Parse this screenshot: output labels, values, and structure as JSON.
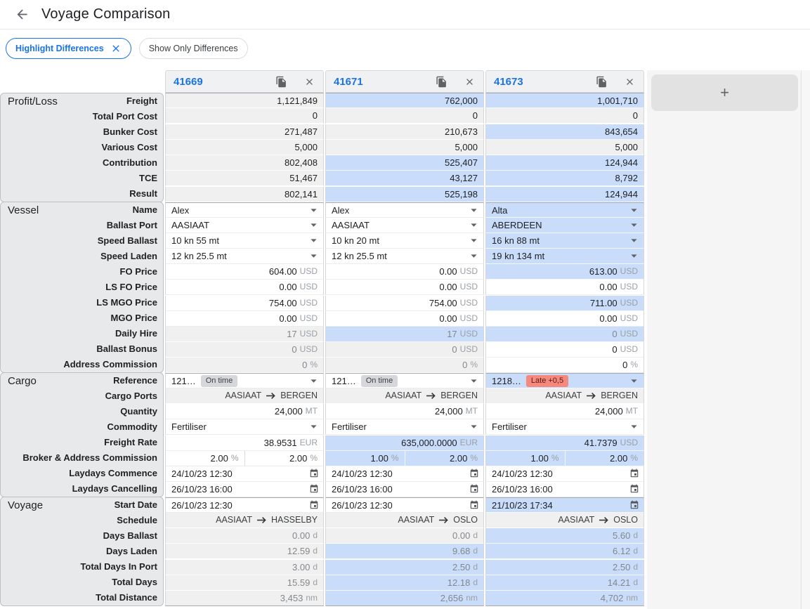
{
  "header": {
    "title": "Voyage Comparison",
    "back_icon": "arrow-left"
  },
  "filters": {
    "highlight_label": "Highlight Differences",
    "highlight_remove_icon": "close",
    "show_only_label": "Show Only Differences"
  },
  "add_column_label": "+",
  "colors": {
    "accent_blue": "#1a73e8",
    "diff_highlight_cell": "#c9dcfa",
    "readonly_cell": "#f0f0f0",
    "label_panel": "#e8e9eb",
    "ontime_badge": "#d5d7da",
    "late_badge": "#f5897e"
  },
  "icons": {
    "column_actions": [
      "copy-icon",
      "close-icon"
    ],
    "cell_icons": [
      "caret-down-icon",
      "calendar-icon",
      "arrow-right-icon"
    ]
  },
  "columns": [
    {
      "id": "41669"
    },
    {
      "id": "41671"
    },
    {
      "id": "41673"
    }
  ],
  "sections": [
    {
      "name": "Profit/Loss",
      "rows": [
        {
          "label": "Freight",
          "type": "number",
          "tone": "strong",
          "cells": [
            {
              "v": "1,121,849",
              "bg": "g"
            },
            {
              "v": "762,000",
              "bg": "b"
            },
            {
              "v": "1,001,710",
              "bg": "b"
            }
          ]
        },
        {
          "label": "Total Port Cost",
          "type": "number",
          "tone": "strong",
          "cells": [
            {
              "v": "0",
              "bg": "g"
            },
            {
              "v": "0",
              "bg": "g"
            },
            {
              "v": "0",
              "bg": "g"
            }
          ]
        },
        {
          "label": "Bunker Cost",
          "type": "number",
          "tone": "strong",
          "cells": [
            {
              "v": "271,487",
              "bg": "g"
            },
            {
              "v": "210,673",
              "bg": "g"
            },
            {
              "v": "843,654",
              "bg": "b"
            }
          ]
        },
        {
          "label": "Various Cost",
          "type": "number",
          "tone": "strong",
          "cells": [
            {
              "v": "5,000",
              "bg": "g"
            },
            {
              "v": "5,000",
              "bg": "g"
            },
            {
              "v": "5,000",
              "bg": "g"
            }
          ]
        },
        {
          "label": "Contribution",
          "type": "number",
          "tone": "strong",
          "cells": [
            {
              "v": "802,408",
              "bg": "g"
            },
            {
              "v": "525,407",
              "bg": "b"
            },
            {
              "v": "124,944",
              "bg": "b"
            }
          ]
        },
        {
          "label": "TCE",
          "type": "number",
          "tone": "strong",
          "cells": [
            {
              "v": "51,467",
              "bg": "g"
            },
            {
              "v": "43,127",
              "bg": "b"
            },
            {
              "v": "8,792",
              "bg": "b"
            }
          ]
        },
        {
          "label": "Result",
          "type": "number",
          "tone": "strong",
          "cells": [
            {
              "v": "802,141",
              "bg": "g"
            },
            {
              "v": "525,198",
              "bg": "b"
            },
            {
              "v": "124,944",
              "bg": "b"
            }
          ]
        }
      ]
    },
    {
      "name": "Vessel",
      "rows": [
        {
          "label": "Name",
          "type": "select",
          "cells": [
            {
              "v": "Alex",
              "bg": "w"
            },
            {
              "v": "Alex",
              "bg": "w"
            },
            {
              "v": "Alta",
              "bg": "b"
            }
          ]
        },
        {
          "label": "Ballast Port",
          "type": "select",
          "cells": [
            {
              "v": "AASIAAT",
              "bg": "w"
            },
            {
              "v": "AASIAAT",
              "bg": "w"
            },
            {
              "v": "ABERDEEN",
              "bg": "b"
            }
          ]
        },
        {
          "label": "Speed Ballast",
          "type": "select",
          "cells": [
            {
              "v": "10 kn 55 mt",
              "bg": "w"
            },
            {
              "v": "10 kn 20 mt",
              "bg": "w"
            },
            {
              "v": "16 kn 88 mt",
              "bg": "b"
            }
          ]
        },
        {
          "label": "Speed Laden",
          "type": "select",
          "cells": [
            {
              "v": "12 kn 25.5 mt",
              "bg": "w"
            },
            {
              "v": "12 kn 25.5 mt",
              "bg": "w"
            },
            {
              "v": "19 kn 134 mt",
              "bg": "b"
            }
          ]
        },
        {
          "label": "FO Price",
          "type": "input",
          "cells": [
            {
              "v": "604.00",
              "u": "USD",
              "bg": "w"
            },
            {
              "v": "0.00",
              "u": "USD",
              "bg": "w"
            },
            {
              "v": "613.00",
              "u": "USD",
              "bg": "b"
            }
          ]
        },
        {
          "label": "LS FO Price",
          "type": "input",
          "cells": [
            {
              "v": "0.00",
              "u": "USD",
              "bg": "w"
            },
            {
              "v": "0.00",
              "u": "USD",
              "bg": "w"
            },
            {
              "v": "0.00",
              "u": "USD",
              "bg": "w"
            }
          ]
        },
        {
          "label": "LS MGO Price",
          "type": "input",
          "cells": [
            {
              "v": "754.00",
              "u": "USD",
              "bg": "w"
            },
            {
              "v": "754.00",
              "u": "USD",
              "bg": "w"
            },
            {
              "v": "711.00",
              "u": "USD",
              "bg": "b"
            }
          ]
        },
        {
          "label": "MGO Price",
          "type": "input",
          "cells": [
            {
              "v": "0.00",
              "u": "USD",
              "bg": "w"
            },
            {
              "v": "0.00",
              "u": "USD",
              "bg": "w"
            },
            {
              "v": "0.00",
              "u": "USD",
              "bg": "w"
            }
          ]
        },
        {
          "label": "Daily Hire",
          "type": "number",
          "tone": "muted",
          "cells": [
            {
              "v": "17",
              "u": "USD",
              "bg": "g"
            },
            {
              "v": "17",
              "u": "USD",
              "bg": "b"
            },
            {
              "v": "0",
              "u": "USD",
              "bg": "b"
            }
          ]
        },
        {
          "label": "Ballast Bonus",
          "type": "number",
          "tone": "muted",
          "cells": [
            {
              "v": "0",
              "u": "USD",
              "bg": "g"
            },
            {
              "v": "0",
              "u": "USD",
              "bg": "g"
            },
            {
              "v": "0",
              "u": "USD",
              "bg": "w",
              "tone": "strong"
            }
          ]
        },
        {
          "label": "Address Commission",
          "type": "number",
          "tone": "muted",
          "cells": [
            {
              "v": "0",
              "u": "%",
              "bg": "g"
            },
            {
              "v": "0",
              "u": "%",
              "bg": "g"
            },
            {
              "v": "0",
              "u": "%",
              "bg": "w",
              "tone": "strong"
            }
          ]
        }
      ]
    },
    {
      "name": "Cargo",
      "rows": [
        {
          "label": "Reference",
          "type": "reference",
          "cells": [
            {
              "v": "121…",
              "badge": "On time",
              "badge_type": "ontime",
              "bg": "w"
            },
            {
              "v": "121…",
              "badge": "On time",
              "badge_type": "ontime",
              "bg": "w"
            },
            {
              "v": "1218…",
              "badge": "Late +0,5",
              "badge_type": "late",
              "bg": "b"
            }
          ]
        },
        {
          "label": "Cargo Ports",
          "type": "route",
          "cells": [
            {
              "from": "AASIAAT",
              "to": "BERGEN",
              "bg": "g"
            },
            {
              "from": "AASIAAT",
              "to": "BERGEN",
              "bg": "g"
            },
            {
              "from": "AASIAAT",
              "to": "BERGEN",
              "bg": "g"
            }
          ]
        },
        {
          "label": "Quantity",
          "type": "input",
          "cells": [
            {
              "v": "24,000",
              "u": "MT",
              "bg": "w"
            },
            {
              "v": "24,000",
              "u": "MT",
              "bg": "w"
            },
            {
              "v": "24,000",
              "u": "MT",
              "bg": "w"
            }
          ]
        },
        {
          "label": "Commodity",
          "type": "select",
          "cells": [
            {
              "v": "Fertiliser",
              "bg": "w"
            },
            {
              "v": "Fertiliser",
              "bg": "w"
            },
            {
              "v": "Fertiliser",
              "bg": "w"
            }
          ]
        },
        {
          "label": "Freight Rate",
          "type": "input",
          "cells": [
            {
              "v": "38.9531",
              "u": "EUR",
              "bg": "w"
            },
            {
              "v": "635,000.0000",
              "u": "EUR",
              "bg": "b"
            },
            {
              "v": "41.7379",
              "u": "USD",
              "bg": "b"
            }
          ]
        },
        {
          "label": "Broker & Address Commission",
          "type": "dual",
          "cells": [
            {
              "v1": "2.00",
              "v2": "2.00",
              "u": "%",
              "bg": "w"
            },
            {
              "v1": "1.00",
              "v2": "2.00",
              "u": "%",
              "bg": "b"
            },
            {
              "v1": "1.00",
              "v2": "2.00",
              "u": "%",
              "bg": "b"
            }
          ]
        },
        {
          "label": "Laydays Commence",
          "type": "date",
          "cells": [
            {
              "v": "24/10/23 12:30",
              "bg": "w"
            },
            {
              "v": "24/10/23 12:30",
              "bg": "w"
            },
            {
              "v": "24/10/23 12:30",
              "bg": "w"
            }
          ]
        },
        {
          "label": "Laydays Cancelling",
          "type": "date",
          "cells": [
            {
              "v": "26/10/23 16:00",
              "bg": "w"
            },
            {
              "v": "26/10/23 16:00",
              "bg": "w"
            },
            {
              "v": "26/10/23 16:00",
              "bg": "w"
            }
          ]
        }
      ]
    },
    {
      "name": "Voyage",
      "rows": [
        {
          "label": "Start Date",
          "type": "date",
          "cells": [
            {
              "v": "26/10/23 12:30",
              "bg": "w"
            },
            {
              "v": "26/10/23 12:30",
              "bg": "w"
            },
            {
              "v": "21/10/23 17:34",
              "bg": "b"
            }
          ]
        },
        {
          "label": "Schedule",
          "type": "route",
          "cells": [
            {
              "from": "AASIAAT",
              "to": "HASSELBY",
              "bg": "g"
            },
            {
              "from": "AASIAAT",
              "to": "OSLO",
              "bg": "g"
            },
            {
              "from": "AASIAAT",
              "to": "OSLO",
              "bg": "g"
            }
          ]
        },
        {
          "label": "Days Ballast",
          "type": "number",
          "tone": "muted",
          "cells": [
            {
              "v": "0.00",
              "u": "d",
              "bg": "g"
            },
            {
              "v": "0.00",
              "u": "d",
              "bg": "g"
            },
            {
              "v": "5.60",
              "u": "d",
              "bg": "b"
            }
          ]
        },
        {
          "label": "Days Laden",
          "type": "number",
          "tone": "muted",
          "cells": [
            {
              "v": "12.59",
              "u": "d",
              "bg": "g"
            },
            {
              "v": "9.68",
              "u": "d",
              "bg": "b"
            },
            {
              "v": "6.12",
              "u": "d",
              "bg": "b"
            }
          ]
        },
        {
          "label": "Total Days In Port",
          "type": "number",
          "tone": "muted",
          "cells": [
            {
              "v": "3.00",
              "u": "d",
              "bg": "g"
            },
            {
              "v": "2.50",
              "u": "d",
              "bg": "b"
            },
            {
              "v": "2.50",
              "u": "d",
              "bg": "b"
            }
          ]
        },
        {
          "label": "Total Days",
          "type": "number",
          "tone": "muted",
          "cells": [
            {
              "v": "15.59",
              "u": "d",
              "bg": "g"
            },
            {
              "v": "12.18",
              "u": "d",
              "bg": "b"
            },
            {
              "v": "14.21",
              "u": "d",
              "bg": "b"
            }
          ]
        },
        {
          "label": "Total Distance",
          "type": "number",
          "tone": "muted",
          "cells": [
            {
              "v": "3,453",
              "u": "nm",
              "bg": "g"
            },
            {
              "v": "2,656",
              "u": "nm",
              "bg": "b"
            },
            {
              "v": "4,702",
              "u": "nm",
              "bg": "b"
            }
          ]
        }
      ]
    }
  ]
}
